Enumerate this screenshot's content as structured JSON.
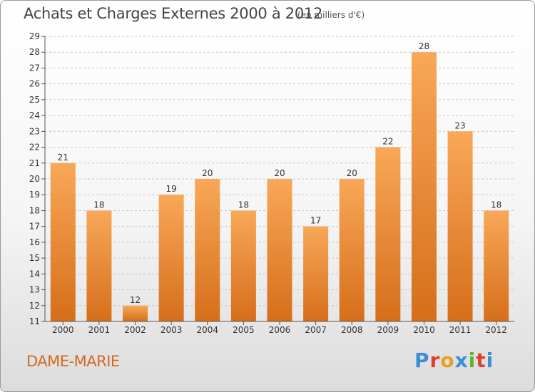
{
  "header": {
    "title": "Achats et Charges Externes 2000 à 2012",
    "unit": "(en milliers d'€)"
  },
  "footer": {
    "city": "DAME-MARIE",
    "logo": [
      "P",
      "r",
      "o",
      "x",
      "i",
      "t",
      "i"
    ],
    "logo_colors": [
      "#3a8fd8",
      "#e0402a",
      "#f0a020",
      "#3a8fd8",
      "#5cb82e",
      "#e0402a",
      "#3a8fd8"
    ]
  },
  "colors": {
    "bar_top": "#f8a858",
    "bar_bottom": "#d66e1a",
    "axis": "#555555",
    "grid": "#c8c8c8"
  },
  "chart_data": {
    "type": "bar",
    "title": "Achats et Charges Externes 2000 à 2012",
    "categories": [
      "2000",
      "2001",
      "2002",
      "2003",
      "2004",
      "2005",
      "2006",
      "2007",
      "2008",
      "2009",
      "2010",
      "2011",
      "2012"
    ],
    "values": [
      21,
      18,
      12,
      19,
      20,
      18,
      20,
      17,
      20,
      22,
      28,
      23,
      18
    ],
    "ylim": [
      11,
      29
    ],
    "yticks": [
      "11",
      "12",
      "13",
      "14",
      "15",
      "16",
      "17",
      "18",
      "19",
      "20",
      "21",
      "22",
      "23",
      "24",
      "25",
      "26",
      "27",
      "28",
      "29"
    ],
    "grid": true
  }
}
